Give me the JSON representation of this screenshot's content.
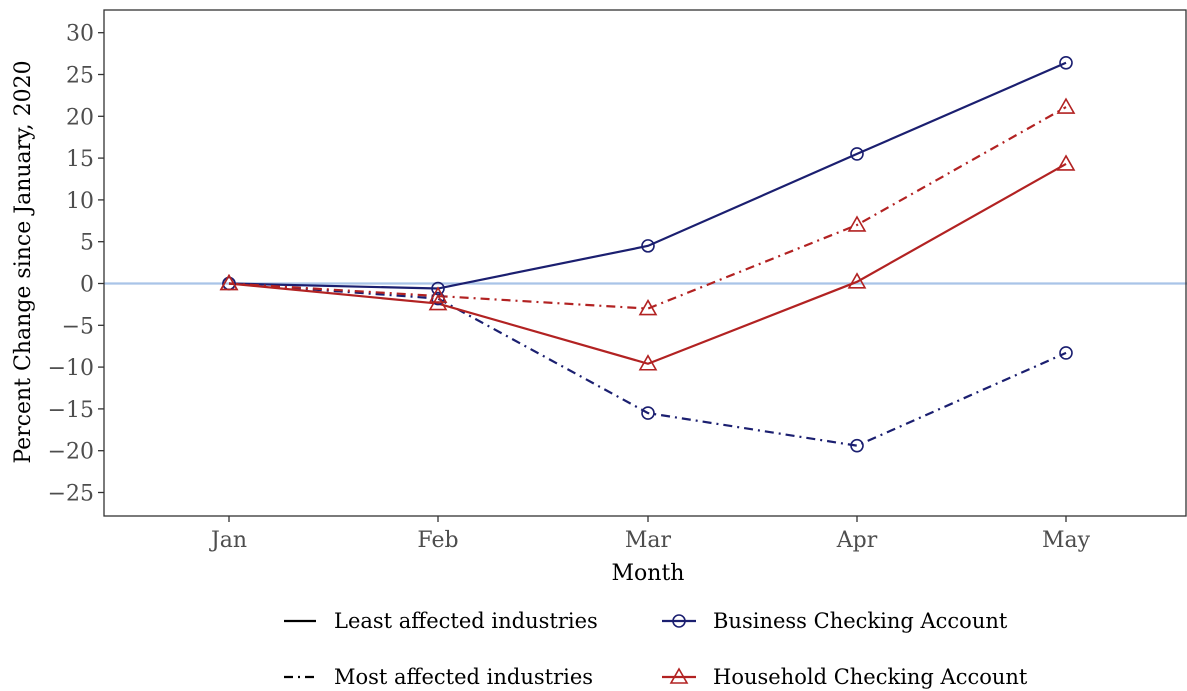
{
  "chart_data": {
    "type": "line",
    "categories": [
      "Jan",
      "Feb",
      "Mar",
      "Apr",
      "May"
    ],
    "xlabel": "Month",
    "ylabel": "Percent Change since January, 2020",
    "ylim": [
      -28,
      31
    ],
    "yticks": [
      30,
      25,
      20,
      15,
      10,
      5,
      0,
      -5,
      -10,
      -15,
      -20,
      -25
    ],
    "ytick_labels": [
      "30",
      "25",
      "20",
      "15",
      "10",
      "5",
      "0",
      "−5",
      "−10",
      "−15",
      "−20",
      "−25"
    ],
    "reference_line": {
      "y": 0,
      "color": "#a9c4e8"
    },
    "grid": false,
    "legend_position": "bottom",
    "series": [
      {
        "account": "Business Checking Account",
        "industry": "Least affected industries",
        "color": "#1b1f70",
        "linestyle": "solid",
        "marker": "circle",
        "values": [
          0,
          -0.6,
          4.5,
          15.5,
          26.4
        ]
      },
      {
        "account": "Business Checking Account",
        "industry": "Most affected industries",
        "color": "#1b1f70",
        "linestyle": "dashdot",
        "marker": "circle",
        "values": [
          0,
          -1.8,
          -15.5,
          -19.4,
          -8.3
        ]
      },
      {
        "account": "Household Checking Account",
        "industry": "Least affected industries",
        "color": "#b22222",
        "linestyle": "solid",
        "marker": "triangle",
        "values": [
          0,
          -2.4,
          -9.6,
          0.2,
          14.3
        ]
      },
      {
        "account": "Household Checking Account",
        "industry": "Most affected industries",
        "color": "#b22222",
        "linestyle": "dashdot",
        "marker": "triangle",
        "values": [
          0,
          -1.5,
          -3.0,
          7.0,
          21.1
        ]
      }
    ],
    "legend": {
      "linetype": [
        {
          "label": "Least affected industries",
          "linestyle": "solid"
        },
        {
          "label": "Most affected industries",
          "linestyle": "dashdot"
        }
      ],
      "account": [
        {
          "label": "Business Checking Account",
          "color": "#1b1f70",
          "marker": "circle"
        },
        {
          "label": "Household Checking Account",
          "color": "#b22222",
          "marker": "triangle"
        }
      ]
    }
  }
}
